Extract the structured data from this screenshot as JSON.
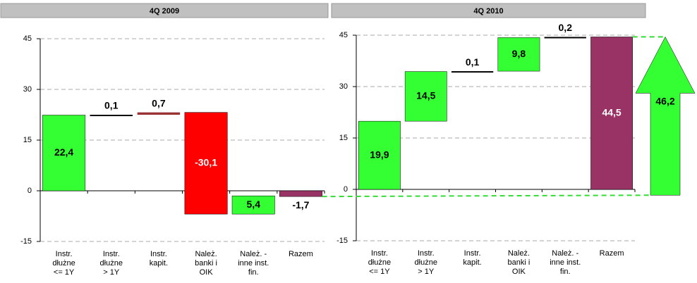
{
  "chart_data": [
    {
      "type": "waterfall",
      "title": "4Q 2009",
      "categories": [
        "Instr.\ndłużne\n<= 1Y",
        "Instr.\ndłużne\n> 1Y",
        "Instr.\nkapit.",
        "Należ.\nbanki i\nOIK",
        "Należ. -\ninne inst.\nfin.",
        "Razem"
      ],
      "values": [
        22.4,
        0.1,
        0.7,
        -30.1,
        5.4,
        -1.7
      ],
      "value_labels": [
        "22,4",
        "0,1",
        "0,7",
        "-30,1",
        "5,4",
        "-1,7"
      ],
      "is_total": [
        false,
        false,
        false,
        false,
        false,
        true
      ],
      "colors": [
        "#33ff33",
        "#000000",
        "#993333",
        "#ff0000",
        "#33ff33",
        "#993366"
      ],
      "label_colors": [
        "#000000",
        "#000000",
        "#000000",
        "#ffffff",
        "#000000",
        "#000000"
      ],
      "ylim": [
        -15,
        45
      ],
      "yticks": [
        -15,
        0,
        15,
        30,
        45
      ],
      "grid": true
    },
    {
      "type": "waterfall",
      "title": "4Q 2010",
      "categories": [
        "Instr.\ndłużne\n<= 1Y",
        "Instr.\ndłużne\n> 1Y",
        "Instr.\nkapit.",
        "Należ.\nbanki i\nOIK",
        "Należ. -\ninne inst.\nfin.",
        "Razem"
      ],
      "values": [
        19.9,
        14.5,
        0.1,
        9.8,
        0.2,
        44.5
      ],
      "value_labels": [
        "19,9",
        "14,5",
        "0,1",
        "9,8",
        "0,2",
        "44,5"
      ],
      "is_total": [
        false,
        false,
        false,
        false,
        false,
        true
      ],
      "colors": [
        "#33ff33",
        "#33ff33",
        "#000000",
        "#33ff33",
        "#000000",
        "#993366"
      ],
      "label_colors": [
        "#000000",
        "#000000",
        "#000000",
        "#000000",
        "#000000",
        "#ffffff"
      ],
      "ylim": [
        -15,
        45
      ],
      "yticks": [
        -15,
        0,
        15,
        30,
        45
      ],
      "grid": true,
      "annotation": {
        "value": 46.2,
        "label": "46,2",
        "color": "#33ff33"
      }
    }
  ]
}
